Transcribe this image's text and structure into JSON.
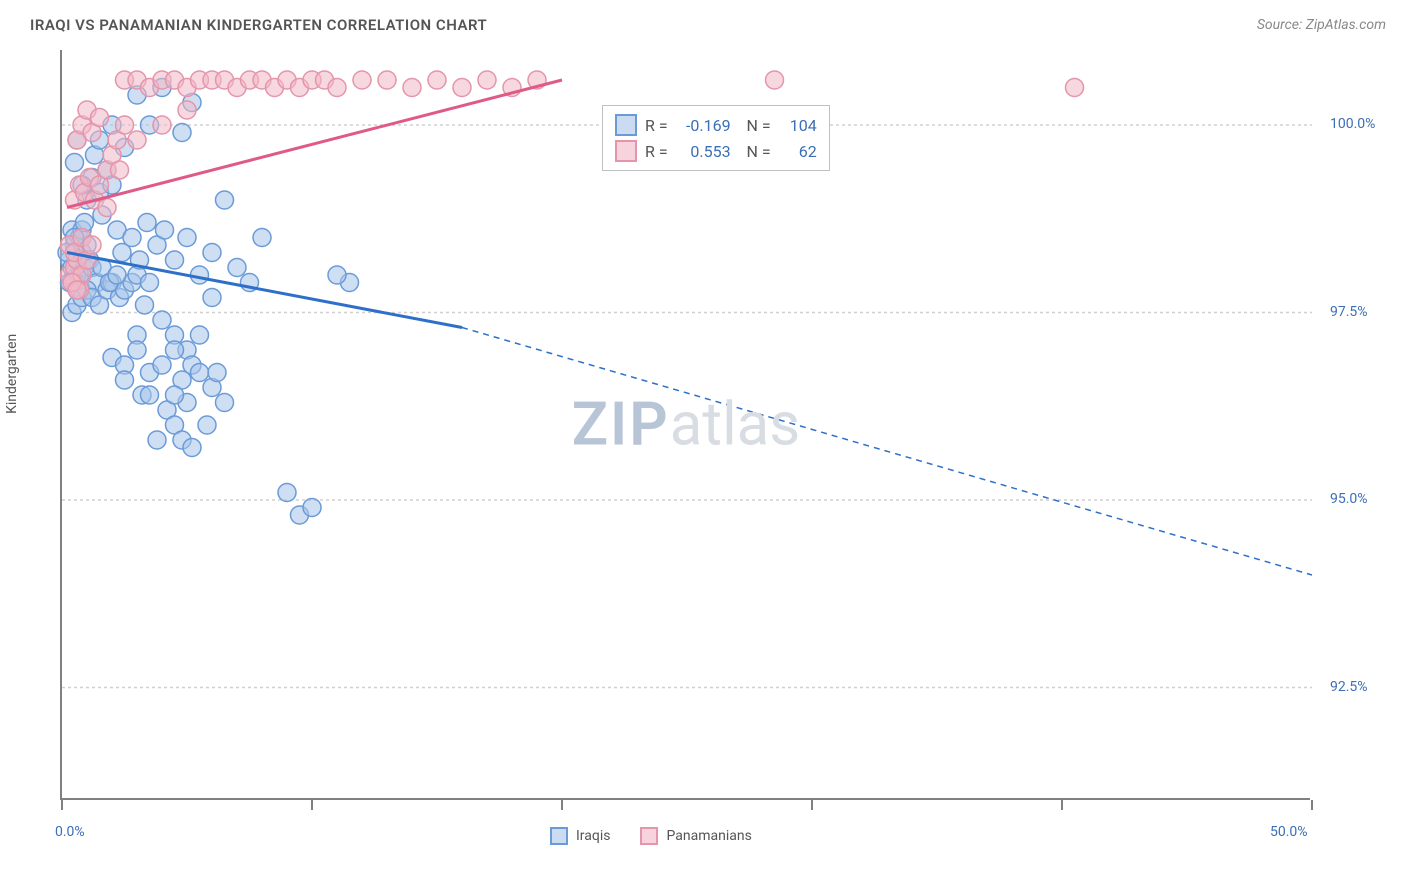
{
  "header": {
    "title": "IRAQI VS PANAMANIAN KINDERGARTEN CORRELATION CHART",
    "source": "Source: ZipAtlas.com"
  },
  "chart": {
    "type": "scatter",
    "ylabel": "Kindergarten",
    "background_color": "#ffffff",
    "grid_color": "#d0d0d0",
    "axis_color": "#808080",
    "axis_label_color": "#3b6fb6",
    "text_color": "#555555",
    "xlim": [
      0,
      50
    ],
    "ylim": [
      91,
      101
    ],
    "x_ticks": [
      0,
      10,
      20,
      30,
      40,
      50
    ],
    "x_tick_labels": {
      "0": "0.0%",
      "50": "50.0%"
    },
    "y_grid": [
      92.5,
      95.0,
      97.5,
      100.0
    ],
    "y_grid_labels": [
      "92.5%",
      "95.0%",
      "97.5%",
      "100.0%"
    ],
    "marker_radius": 9,
    "marker_stroke_width": 1.5,
    "trend_line_width": 3,
    "trend_dash_pattern": "6,5",
    "watermark": {
      "bold": "ZIP",
      "light": "atlas"
    },
    "series": [
      {
        "name": "Iraqis",
        "color_fill": "#a8c4ea",
        "color_stroke": "#6a9bd8",
        "fill_opacity": 0.55,
        "r_value": "-0.169",
        "n_value": "104",
        "trend": {
          "x1": 0.2,
          "y1": 98.3,
          "x2": 16,
          "y2": 97.3,
          "ext_x2": 50,
          "ext_y2": 94.0,
          "line_color": "#2d6fc9"
        },
        "points": [
          [
            0.3,
            98.2
          ],
          [
            0.5,
            98.4
          ],
          [
            0.4,
            98.6
          ],
          [
            0.6,
            98.0
          ],
          [
            0.8,
            98.3
          ],
          [
            0.5,
            97.9
          ],
          [
            0.7,
            98.5
          ],
          [
            0.9,
            98.1
          ],
          [
            1.0,
            98.4
          ],
          [
            0.4,
            98.1
          ],
          [
            0.6,
            97.8
          ],
          [
            0.8,
            98.6
          ],
          [
            1.1,
            98.2
          ],
          [
            0.3,
            97.9
          ],
          [
            0.5,
            98.5
          ],
          [
            0.7,
            98.0
          ],
          [
            0.9,
            98.7
          ],
          [
            0.2,
            98.3
          ],
          [
            1.2,
            98.1
          ],
          [
            1.4,
            97.9
          ],
          [
            1.0,
            99.0
          ],
          [
            1.2,
            99.3
          ],
          [
            0.8,
            99.2
          ],
          [
            0.5,
            99.5
          ],
          [
            1.5,
            99.1
          ],
          [
            1.8,
            99.4
          ],
          [
            2.0,
            99.2
          ],
          [
            1.3,
            99.6
          ],
          [
            0.6,
            99.8
          ],
          [
            1.6,
            98.8
          ],
          [
            0.4,
            97.5
          ],
          [
            0.6,
            97.6
          ],
          [
            0.8,
            97.7
          ],
          [
            1.0,
            97.8
          ],
          [
            1.2,
            97.7
          ],
          [
            1.5,
            97.6
          ],
          [
            1.8,
            97.8
          ],
          [
            2.0,
            97.9
          ],
          [
            2.3,
            97.7
          ],
          [
            2.5,
            97.8
          ],
          [
            2.8,
            97.9
          ],
          [
            3.0,
            98.0
          ],
          [
            3.3,
            97.6
          ],
          [
            3.5,
            97.9
          ],
          [
            1.5,
            99.8
          ],
          [
            2.0,
            100.0
          ],
          [
            2.5,
            99.7
          ],
          [
            3.0,
            100.4
          ],
          [
            3.5,
            100.0
          ],
          [
            2.2,
            98.6
          ],
          [
            2.4,
            98.3
          ],
          [
            2.8,
            98.5
          ],
          [
            3.1,
            98.2
          ],
          [
            3.4,
            98.7
          ],
          [
            3.8,
            98.4
          ],
          [
            4.1,
            98.6
          ],
          [
            4.5,
            98.2
          ],
          [
            5.0,
            98.5
          ],
          [
            5.5,
            98.0
          ],
          [
            6.0,
            98.3
          ],
          [
            1.6,
            98.1
          ],
          [
            1.9,
            97.9
          ],
          [
            2.2,
            98.0
          ],
          [
            7.0,
            98.1
          ],
          [
            6.5,
            99.0
          ],
          [
            5.5,
            97.2
          ],
          [
            3.0,
            97.2
          ],
          [
            4.0,
            97.4
          ],
          [
            4.5,
            97.2
          ],
          [
            5.0,
            97.0
          ],
          [
            2.0,
            96.9
          ],
          [
            2.5,
            96.8
          ],
          [
            3.0,
            97.0
          ],
          [
            3.5,
            96.7
          ],
          [
            4.0,
            96.8
          ],
          [
            4.5,
            97.0
          ],
          [
            2.5,
            96.6
          ],
          [
            4.8,
            96.6
          ],
          [
            5.2,
            96.8
          ],
          [
            6.0,
            97.7
          ],
          [
            5.5,
            96.7
          ],
          [
            6.0,
            96.5
          ],
          [
            3.2,
            96.4
          ],
          [
            4.2,
            96.2
          ],
          [
            5.0,
            96.3
          ],
          [
            4.5,
            96.0
          ],
          [
            3.5,
            96.4
          ],
          [
            6.5,
            96.3
          ],
          [
            5.8,
            96.0
          ],
          [
            4.8,
            95.8
          ],
          [
            3.8,
            95.8
          ],
          [
            5.2,
            95.7
          ],
          [
            4.5,
            96.4
          ],
          [
            6.2,
            96.7
          ],
          [
            11.5,
            97.9
          ],
          [
            11.0,
            98.0
          ],
          [
            9.0,
            95.1
          ],
          [
            9.5,
            94.8
          ],
          [
            10.0,
            94.9
          ],
          [
            4.0,
            100.5
          ],
          [
            8.0,
            98.5
          ],
          [
            7.5,
            97.9
          ],
          [
            4.8,
            99.9
          ],
          [
            5.2,
            100.3
          ]
        ]
      },
      {
        "name": "Panamanians",
        "color_fill": "#f2b8c6",
        "color_stroke": "#e495aa",
        "fill_opacity": 0.55,
        "r_value": "0.553",
        "n_value": "62",
        "trend": {
          "x1": 0.2,
          "y1": 98.9,
          "x2": 20,
          "y2": 100.6,
          "ext_x2": null,
          "ext_y2": null,
          "line_color": "#e05a87"
        },
        "points": [
          [
            0.3,
            98.0
          ],
          [
            0.5,
            98.1
          ],
          [
            0.4,
            97.9
          ],
          [
            0.6,
            98.2
          ],
          [
            0.8,
            98.0
          ],
          [
            0.3,
            98.4
          ],
          [
            0.5,
            98.3
          ],
          [
            0.7,
            97.8
          ],
          [
            0.4,
            97.9
          ],
          [
            0.6,
            97.8
          ],
          [
            0.8,
            98.5
          ],
          [
            1.0,
            98.2
          ],
          [
            1.2,
            98.4
          ],
          [
            0.5,
            99.0
          ],
          [
            0.7,
            99.2
          ],
          [
            0.9,
            99.1
          ],
          [
            1.1,
            99.3
          ],
          [
            1.3,
            99.0
          ],
          [
            1.5,
            99.2
          ],
          [
            1.8,
            99.4
          ],
          [
            2.0,
            99.6
          ],
          [
            2.3,
            99.4
          ],
          [
            0.6,
            99.8
          ],
          [
            0.8,
            100.0
          ],
          [
            1.0,
            100.2
          ],
          [
            1.2,
            99.9
          ],
          [
            1.5,
            100.1
          ],
          [
            1.8,
            98.9
          ],
          [
            2.2,
            99.8
          ],
          [
            2.5,
            100.0
          ],
          [
            2.5,
            100.6
          ],
          [
            3.0,
            100.6
          ],
          [
            3.5,
            100.5
          ],
          [
            4.0,
            100.6
          ],
          [
            4.5,
            100.6
          ],
          [
            5.0,
            100.5
          ],
          [
            5.5,
            100.6
          ],
          [
            6.0,
            100.6
          ],
          [
            6.5,
            100.6
          ],
          [
            7.0,
            100.5
          ],
          [
            7.5,
            100.6
          ],
          [
            8.0,
            100.6
          ],
          [
            8.5,
            100.5
          ],
          [
            9.0,
            100.6
          ],
          [
            9.5,
            100.5
          ],
          [
            10.0,
            100.6
          ],
          [
            10.5,
            100.6
          ],
          [
            11.0,
            100.5
          ],
          [
            12.0,
            100.6
          ],
          [
            13.0,
            100.6
          ],
          [
            14.0,
            100.5
          ],
          [
            15.0,
            100.6
          ],
          [
            16.0,
            100.5
          ],
          [
            17.0,
            100.6
          ],
          [
            18.0,
            100.5
          ],
          [
            19.0,
            100.6
          ],
          [
            3.0,
            99.8
          ],
          [
            4.0,
            100.0
          ],
          [
            5.0,
            100.2
          ],
          [
            28.5,
            100.6
          ],
          [
            29.0,
            100.0
          ],
          [
            40.5,
            100.5
          ]
        ]
      }
    ]
  }
}
